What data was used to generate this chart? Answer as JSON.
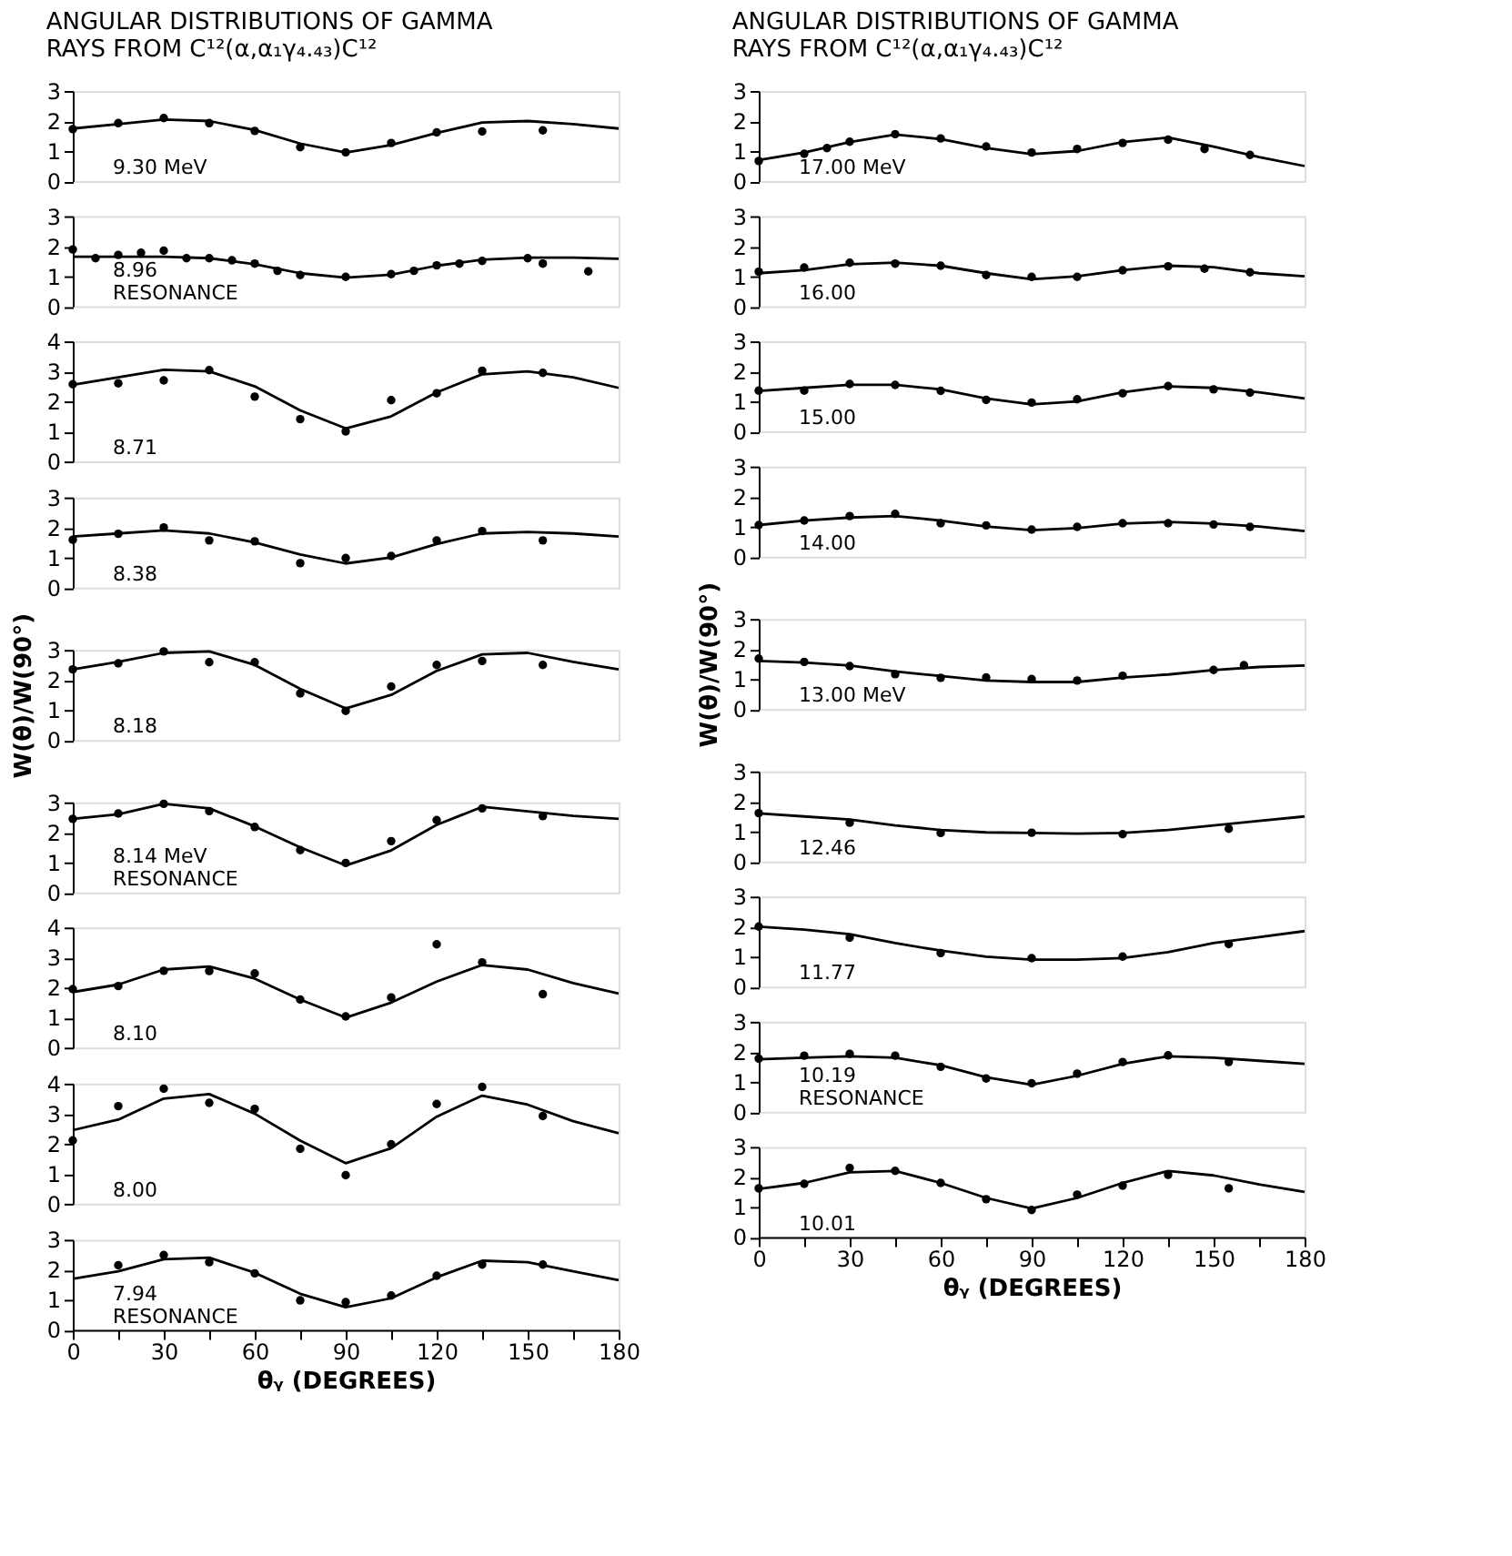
{
  "chart_data": [
    {
      "type": "scatter",
      "title": "ANGULAR DISTRIBUTIONS OF GAMMA RAYS FROM C¹²(α,α₁γ₄.₄₃)C¹²",
      "annotations": [
        "9.30 MeV"
      ],
      "xlim": [
        0,
        180
      ],
      "ylim": [
        0,
        3
      ],
      "yticks": [
        0,
        1,
        2,
        3
      ],
      "tick_labels": "y",
      "grid": false,
      "series": [
        {
          "type": "scatter",
          "marker": "circle",
          "color": "#000000",
          "x": [
            0,
            15,
            30,
            45,
            60,
            75,
            90,
            105,
            120,
            135,
            155
          ],
          "values": [
            1.73,
            1.93,
            2.1,
            1.93,
            1.67,
            1.13,
            0.96,
            1.27,
            1.62,
            1.65,
            1.69
          ]
        },
        {
          "type": "line",
          "marker": "none",
          "color": "#000000",
          "x": [
            0,
            15,
            30,
            45,
            60,
            75,
            90,
            105,
            120,
            135,
            150,
            165,
            180
          ],
          "values": [
            1.75,
            1.9,
            2.05,
            2.0,
            1.7,
            1.25,
            0.95,
            1.2,
            1.6,
            1.95,
            2.0,
            1.9,
            1.75
          ]
        }
      ]
    },
    {
      "type": "scatter",
      "annotations": [
        "8.96",
        "RESONANCE"
      ],
      "xlim": [
        0,
        180
      ],
      "ylim": [
        0,
        3
      ],
      "yticks": [
        0,
        1,
        2,
        3
      ],
      "tick_labels": "y",
      "grid": false,
      "series": [
        {
          "type": "scatter",
          "marker": "circle",
          "color": "#000000",
          "x": [
            0,
            7.5,
            15,
            22.5,
            30,
            37.5,
            45,
            52.5,
            60,
            67.5,
            75,
            90,
            105,
            112.5,
            120,
            127.5,
            135,
            150,
            155,
            170
          ],
          "values": [
            1.89,
            1.6,
            1.71,
            1.78,
            1.85,
            1.6,
            1.6,
            1.53,
            1.42,
            1.18,
            1.04,
            0.98,
            1.07,
            1.18,
            1.36,
            1.42,
            1.51,
            1.6,
            1.42,
            1.16
          ]
        },
        {
          "type": "line",
          "marker": "none",
          "color": "#000000",
          "x": [
            0,
            15,
            30,
            45,
            60,
            75,
            90,
            105,
            120,
            135,
            150,
            165,
            180
          ],
          "values": [
            1.65,
            1.65,
            1.65,
            1.6,
            1.4,
            1.1,
            0.95,
            1.05,
            1.35,
            1.55,
            1.62,
            1.62,
            1.58
          ]
        }
      ]
    },
    {
      "type": "scatter",
      "annotations": [
        "8.71"
      ],
      "xlim": [
        0,
        180
      ],
      "ylim": [
        0,
        4
      ],
      "yticks": [
        0,
        1,
        2,
        3,
        4
      ],
      "tick_labels": "y",
      "grid": false,
      "series": [
        {
          "type": "scatter",
          "marker": "circle",
          "color": "#000000",
          "x": [
            0,
            15,
            30,
            45,
            60,
            75,
            90,
            105,
            120,
            135,
            155
          ],
          "values": [
            2.57,
            2.6,
            2.7,
            3.04,
            2.16,
            1.41,
            1.0,
            2.04,
            2.27,
            3.02,
            2.95
          ]
        },
        {
          "type": "line",
          "marker": "none",
          "color": "#000000",
          "x": [
            0,
            15,
            30,
            45,
            60,
            75,
            90,
            105,
            120,
            135,
            150,
            165,
            180
          ],
          "values": [
            2.55,
            2.8,
            3.05,
            3.0,
            2.5,
            1.7,
            1.1,
            1.5,
            2.3,
            2.9,
            3.0,
            2.8,
            2.45
          ]
        }
      ]
    },
    {
      "type": "scatter",
      "annotations": [
        "8.38"
      ],
      "xlim": [
        0,
        180
      ],
      "ylim": [
        0,
        3
      ],
      "yticks": [
        0,
        1,
        2,
        3
      ],
      "tick_labels": "y",
      "grid": false,
      "series": [
        {
          "type": "scatter",
          "marker": "circle",
          "color": "#000000",
          "x": [
            0,
            15,
            30,
            45,
            60,
            75,
            90,
            105,
            120,
            135,
            155
          ],
          "values": [
            1.59,
            1.79,
            2.0,
            1.57,
            1.54,
            0.81,
            0.98,
            1.05,
            1.57,
            1.88,
            1.57
          ]
        },
        {
          "type": "line",
          "marker": "none",
          "color": "#000000",
          "x": [
            0,
            15,
            30,
            45,
            60,
            75,
            90,
            105,
            120,
            135,
            150,
            165,
            180
          ],
          "values": [
            1.7,
            1.8,
            1.9,
            1.8,
            1.5,
            1.1,
            0.8,
            1.0,
            1.45,
            1.8,
            1.85,
            1.8,
            1.7
          ]
        }
      ]
    },
    {
      "type": "scatter",
      "annotations": [
        "8.18"
      ],
      "ylabel": "W(θ)/W(90°)",
      "xlim": [
        0,
        180
      ],
      "ylim": [
        0,
        3
      ],
      "yticks": [
        0,
        1,
        2,
        3
      ],
      "tick_labels": "y",
      "grid": false,
      "series": [
        {
          "type": "scatter",
          "marker": "circle",
          "color": "#000000",
          "x": [
            0,
            15,
            30,
            45,
            60,
            75,
            90,
            105,
            120,
            135,
            155
          ],
          "values": [
            2.35,
            2.55,
            2.95,
            2.59,
            2.59,
            1.55,
            0.97,
            1.78,
            2.5,
            2.63,
            2.5
          ]
        },
        {
          "type": "line",
          "marker": "none",
          "color": "#000000",
          "x": [
            0,
            15,
            30,
            45,
            60,
            75,
            90,
            105,
            120,
            135,
            150,
            165,
            180
          ],
          "values": [
            2.35,
            2.6,
            2.9,
            2.95,
            2.5,
            1.7,
            1.05,
            1.5,
            2.3,
            2.85,
            2.9,
            2.6,
            2.35
          ]
        }
      ]
    },
    {
      "type": "scatter",
      "annotations": [
        "8.14 MeV",
        "RESONANCE"
      ],
      "xlim": [
        0,
        180
      ],
      "ylim": [
        0,
        3
      ],
      "yticks": [
        0,
        1,
        2,
        3
      ],
      "tick_labels": "y",
      "grid": false,
      "series": [
        {
          "type": "scatter",
          "marker": "circle",
          "color": "#000000",
          "x": [
            0,
            15,
            30,
            45,
            60,
            75,
            90,
            105,
            120,
            135,
            155
          ],
          "values": [
            2.45,
            2.63,
            2.95,
            2.71,
            2.18,
            1.41,
            0.98,
            1.71,
            2.41,
            2.8,
            2.54
          ]
        },
        {
          "type": "line",
          "marker": "none",
          "color": "#000000",
          "x": [
            0,
            15,
            30,
            45,
            60,
            75,
            90,
            105,
            120,
            135,
            150,
            165,
            180
          ],
          "values": [
            2.45,
            2.6,
            2.95,
            2.8,
            2.2,
            1.5,
            0.9,
            1.4,
            2.25,
            2.85,
            2.7,
            2.55,
            2.45
          ]
        }
      ]
    },
    {
      "type": "scatter",
      "annotations": [
        "8.10"
      ],
      "xlim": [
        0,
        180
      ],
      "ylim": [
        0,
        4
      ],
      "yticks": [
        0,
        1,
        2,
        3,
        4
      ],
      "tick_labels": "y",
      "grid": false,
      "series": [
        {
          "type": "scatter",
          "marker": "circle",
          "color": "#000000",
          "x": [
            0,
            15,
            30,
            45,
            60,
            75,
            90,
            105,
            120,
            135,
            155
          ],
          "values": [
            1.95,
            2.05,
            2.56,
            2.55,
            2.47,
            1.6,
            1.04,
            1.67,
            3.44,
            2.84,
            1.78
          ]
        },
        {
          "type": "line",
          "marker": "none",
          "color": "#000000",
          "x": [
            0,
            15,
            30,
            45,
            60,
            75,
            90,
            105,
            120,
            135,
            150,
            165,
            180
          ],
          "values": [
            1.85,
            2.1,
            2.6,
            2.7,
            2.3,
            1.6,
            1.0,
            1.5,
            2.2,
            2.75,
            2.6,
            2.15,
            1.8
          ]
        }
      ]
    },
    {
      "type": "scatter",
      "annotations": [
        "8.00"
      ],
      "xlim": [
        0,
        180
      ],
      "ylim": [
        0,
        4
      ],
      "yticks": [
        0,
        1,
        2,
        3,
        4
      ],
      "tick_labels": "y",
      "grid": false,
      "series": [
        {
          "type": "scatter",
          "marker": "circle",
          "color": "#000000",
          "x": [
            0,
            15,
            30,
            45,
            60,
            75,
            90,
            105,
            120,
            135,
            155
          ],
          "values": [
            2.11,
            3.25,
            3.83,
            3.36,
            3.16,
            1.83,
            0.95,
            1.98,
            3.32,
            3.89,
            2.92
          ]
        },
        {
          "type": "line",
          "marker": "none",
          "color": "#000000",
          "x": [
            0,
            15,
            30,
            45,
            60,
            75,
            90,
            105,
            120,
            135,
            150,
            165,
            180
          ],
          "values": [
            2.45,
            2.8,
            3.5,
            3.65,
            3.0,
            2.1,
            1.35,
            1.85,
            2.9,
            3.6,
            3.3,
            2.75,
            2.35
          ]
        }
      ]
    },
    {
      "type": "scatter",
      "annotations": [
        "7.94",
        "RESONANCE"
      ],
      "xlabel": "θᵧ (DEGREES)",
      "xlim": [
        0,
        180
      ],
      "ylim": [
        0,
        3
      ],
      "xticks": [
        0,
        {
          "value": 15,
          "label": null
        },
        30,
        {
          "value": 45,
          "label": null
        },
        60,
        {
          "value": 75,
          "label": null
        },
        90,
        {
          "value": 105,
          "label": null
        },
        120,
        {
          "value": 135,
          "label": null
        },
        150,
        {
          "value": 165,
          "label": null
        },
        180
      ],
      "yticks": [
        0,
        1,
        2,
        3
      ],
      "grid": false,
      "series": [
        {
          "type": "scatter",
          "marker": "circle",
          "color": "#000000",
          "x": [
            15,
            30,
            45,
            60,
            75,
            90,
            105,
            120,
            135,
            155
          ],
          "values": [
            2.15,
            2.49,
            2.25,
            1.88,
            0.98,
            0.92,
            1.14,
            1.8,
            2.17,
            2.17
          ]
        },
        {
          "type": "line",
          "marker": "none",
          "color": "#000000",
          "x": [
            0,
            15,
            30,
            45,
            60,
            75,
            90,
            105,
            120,
            135,
            150,
            165,
            180
          ],
          "values": [
            1.7,
            1.95,
            2.35,
            2.4,
            1.9,
            1.2,
            0.75,
            1.05,
            1.75,
            2.3,
            2.25,
            1.95,
            1.65
          ]
        }
      ]
    },
    {
      "type": "scatter",
      "title": "ANGULAR DISTRIBUTIONS OF GAMMA RAYS FROM C¹²(α,α₁γ₄.₄₃)C¹²",
      "annotations": [
        "17.00 MeV"
      ],
      "xlim": [
        0,
        180
      ],
      "ylim": [
        0,
        3
      ],
      "yticks": [
        0,
        1,
        2,
        3
      ],
      "tick_labels": "y",
      "grid": false,
      "series": [
        {
          "type": "scatter",
          "marker": "circle",
          "color": "#000000",
          "x": [
            0,
            15,
            22.5,
            30,
            45,
            60,
            75,
            90,
            105,
            120,
            135,
            147,
            162
          ],
          "values": [
            0.67,
            0.91,
            1.1,
            1.31,
            1.56,
            1.42,
            1.15,
            0.95,
            1.07,
            1.27,
            1.38,
            1.07,
            0.87
          ]
        },
        {
          "type": "line",
          "marker": "none",
          "color": "#000000",
          "x": [
            0,
            15,
            30,
            45,
            60,
            75,
            90,
            105,
            120,
            135,
            150,
            165,
            180
          ],
          "values": [
            0.7,
            0.95,
            1.3,
            1.55,
            1.4,
            1.1,
            0.9,
            1.0,
            1.3,
            1.45,
            1.15,
            0.8,
            0.5
          ]
        }
      ]
    },
    {
      "type": "scatter",
      "annotations": [
        "16.00"
      ],
      "xlim": [
        0,
        180
      ],
      "ylim": [
        0,
        3
      ],
      "yticks": [
        0,
        1,
        2,
        3
      ],
      "tick_labels": "y",
      "grid": false,
      "series": [
        {
          "type": "scatter",
          "marker": "circle",
          "color": "#000000",
          "x": [
            0,
            15,
            30,
            45,
            60,
            75,
            90,
            105,
            120,
            135,
            147,
            162
          ],
          "values": [
            1.15,
            1.29,
            1.45,
            1.42,
            1.35,
            1.04,
            0.98,
            0.98,
            1.2,
            1.33,
            1.25,
            1.13
          ]
        },
        {
          "type": "line",
          "marker": "none",
          "color": "#000000",
          "x": [
            0,
            15,
            30,
            45,
            60,
            75,
            90,
            105,
            120,
            135,
            150,
            165,
            180
          ],
          "values": [
            1.1,
            1.2,
            1.4,
            1.45,
            1.35,
            1.1,
            0.9,
            1.0,
            1.2,
            1.35,
            1.3,
            1.1,
            1.0
          ]
        }
      ]
    },
    {
      "type": "scatter",
      "annotations": [
        "15.00"
      ],
      "xlim": [
        0,
        180
      ],
      "ylim": [
        0,
        3
      ],
      "yticks": [
        0,
        1,
        2,
        3
      ],
      "tick_labels": "y",
      "grid": false,
      "series": [
        {
          "type": "scatter",
          "marker": "circle",
          "color": "#000000",
          "x": [
            0,
            15,
            30,
            45,
            60,
            75,
            90,
            105,
            120,
            135,
            150,
            162
          ],
          "values": [
            1.36,
            1.36,
            1.58,
            1.55,
            1.35,
            1.05,
            0.96,
            1.07,
            1.27,
            1.51,
            1.4,
            1.29
          ]
        },
        {
          "type": "line",
          "marker": "none",
          "color": "#000000",
          "x": [
            0,
            15,
            30,
            45,
            60,
            75,
            90,
            105,
            120,
            135,
            150,
            165,
            180
          ],
          "values": [
            1.35,
            1.45,
            1.55,
            1.55,
            1.4,
            1.1,
            0.9,
            1.0,
            1.3,
            1.5,
            1.45,
            1.3,
            1.1
          ]
        }
      ]
    },
    {
      "type": "scatter",
      "annotations": [
        "14.00"
      ],
      "xlim": [
        0,
        180
      ],
      "ylim": [
        0,
        3
      ],
      "yticks": [
        0,
        1,
        2,
        3
      ],
      "tick_labels": "y",
      "grid": false,
      "series": [
        {
          "type": "scatter",
          "marker": "circle",
          "color": "#000000",
          "x": [
            0,
            15,
            30,
            45,
            60,
            75,
            90,
            105,
            120,
            135,
            150,
            162
          ],
          "values": [
            1.05,
            1.2,
            1.35,
            1.42,
            1.11,
            1.04,
            0.9,
            0.99,
            1.11,
            1.11,
            1.07,
            0.99
          ]
        },
        {
          "type": "line",
          "marker": "none",
          "color": "#000000",
          "x": [
            0,
            15,
            30,
            45,
            60,
            75,
            90,
            105,
            120,
            135,
            150,
            165,
            180
          ],
          "values": [
            1.05,
            1.2,
            1.3,
            1.35,
            1.2,
            1.0,
            0.88,
            0.95,
            1.1,
            1.15,
            1.1,
            1.0,
            0.85
          ]
        }
      ]
    },
    {
      "type": "scatter",
      "annotations": [
        "13.00 MeV"
      ],
      "ylabel": "W(θ)/W(90°)",
      "xlim": [
        0,
        180
      ],
      "ylim": [
        0,
        3
      ],
      "yticks": [
        0,
        1,
        2,
        3
      ],
      "tick_labels": "y",
      "grid": false,
      "series": [
        {
          "type": "scatter",
          "marker": "circle",
          "color": "#000000",
          "x": [
            0,
            15,
            30,
            45,
            60,
            75,
            90,
            105,
            120,
            150,
            160
          ],
          "values": [
            1.68,
            1.57,
            1.43,
            1.16,
            1.04,
            1.05,
            1.0,
            0.95,
            1.11,
            1.3,
            1.46
          ]
        },
        {
          "type": "line",
          "marker": "none",
          "color": "#000000",
          "x": [
            0,
            15,
            30,
            45,
            60,
            75,
            90,
            105,
            120,
            135,
            150,
            165,
            180
          ],
          "values": [
            1.6,
            1.55,
            1.45,
            1.25,
            1.1,
            0.95,
            0.9,
            0.9,
            1.05,
            1.15,
            1.3,
            1.4,
            1.45
          ]
        }
      ]
    },
    {
      "type": "scatter",
      "annotations": [
        "12.46"
      ],
      "xlim": [
        0,
        180
      ],
      "ylim": [
        0,
        3
      ],
      "yticks": [
        0,
        1,
        2,
        3
      ],
      "tick_labels": "y",
      "grid": false,
      "series": [
        {
          "type": "scatter",
          "marker": "circle",
          "color": "#000000",
          "x": [
            0,
            30,
            60,
            90,
            120,
            155
          ],
          "values": [
            1.61,
            1.29,
            0.95,
            0.96,
            0.91,
            1.09
          ]
        },
        {
          "type": "line",
          "marker": "none",
          "color": "#000000",
          "x": [
            0,
            15,
            30,
            45,
            60,
            75,
            90,
            105,
            120,
            135,
            150,
            165,
            180
          ],
          "values": [
            1.6,
            1.5,
            1.4,
            1.2,
            1.05,
            0.97,
            0.95,
            0.93,
            0.95,
            1.05,
            1.2,
            1.35,
            1.5
          ]
        }
      ]
    },
    {
      "type": "scatter",
      "annotations": [
        "11.77"
      ],
      "xlim": [
        0,
        180
      ],
      "ylim": [
        0,
        3
      ],
      "yticks": [
        0,
        1,
        2,
        3
      ],
      "tick_labels": "y",
      "grid": false,
      "series": [
        {
          "type": "scatter",
          "marker": "circle",
          "color": "#000000",
          "x": [
            0,
            30,
            60,
            90,
            120,
            155
          ],
          "values": [
            2.0,
            1.63,
            1.12,
            0.95,
            1.0,
            1.42
          ]
        },
        {
          "type": "line",
          "marker": "none",
          "color": "#000000",
          "x": [
            0,
            15,
            30,
            45,
            60,
            75,
            90,
            105,
            120,
            135,
            150,
            165,
            180
          ],
          "values": [
            2.0,
            1.9,
            1.75,
            1.45,
            1.2,
            1.0,
            0.9,
            0.9,
            0.95,
            1.15,
            1.45,
            1.65,
            1.85
          ]
        }
      ]
    },
    {
      "type": "scatter",
      "annotations": [
        "10.19",
        "RESONANCE"
      ],
      "xlim": [
        0,
        180
      ],
      "ylim": [
        0,
        3
      ],
      "yticks": [
        0,
        1,
        2,
        3
      ],
      "tick_labels": "y",
      "grid": false,
      "series": [
        {
          "type": "scatter",
          "marker": "circle",
          "color": "#000000",
          "x": [
            0,
            15,
            30,
            45,
            60,
            75,
            90,
            105,
            120,
            135,
            155
          ],
          "values": [
            1.77,
            1.87,
            1.93,
            1.87,
            1.5,
            1.11,
            0.95,
            1.27,
            1.66,
            1.88,
            1.66
          ]
        },
        {
          "type": "line",
          "marker": "none",
          "color": "#000000",
          "x": [
            0,
            15,
            30,
            45,
            60,
            75,
            90,
            105,
            120,
            135,
            150,
            165,
            180
          ],
          "values": [
            1.75,
            1.8,
            1.85,
            1.8,
            1.55,
            1.15,
            0.9,
            1.2,
            1.6,
            1.85,
            1.8,
            1.7,
            1.6
          ]
        }
      ]
    },
    {
      "type": "scatter",
      "annotations": [
        "10.01"
      ],
      "xlabel": "θᵧ (DEGREES)",
      "xlim": [
        0,
        180
      ],
      "ylim": [
        0,
        3
      ],
      "xticks": [
        0,
        {
          "value": 15,
          "label": null
        },
        30,
        {
          "value": 45,
          "label": null
        },
        60,
        {
          "value": 75,
          "label": null
        },
        90,
        {
          "value": 105,
          "label": null
        },
        120,
        {
          "value": 135,
          "label": null
        },
        150,
        {
          "value": 165,
          "label": null
        },
        180
      ],
      "yticks": [
        0,
        1,
        2,
        3
      ],
      "grid": false,
      "series": [
        {
          "type": "scatter",
          "marker": "circle",
          "color": "#000000",
          "x": [
            0,
            15,
            30,
            45,
            60,
            75,
            90,
            105,
            120,
            135,
            155
          ],
          "values": [
            1.62,
            1.77,
            2.3,
            2.2,
            1.8,
            1.26,
            0.9,
            1.41,
            1.71,
            2.07,
            1.62
          ]
        },
        {
          "type": "line",
          "marker": "none",
          "color": "#000000",
          "x": [
            0,
            15,
            30,
            45,
            60,
            75,
            90,
            105,
            120,
            135,
            150,
            165,
            180
          ],
          "values": [
            1.6,
            1.8,
            2.15,
            2.2,
            1.8,
            1.3,
            0.95,
            1.3,
            1.8,
            2.2,
            2.05,
            1.75,
            1.5
          ]
        }
      ]
    }
  ]
}
